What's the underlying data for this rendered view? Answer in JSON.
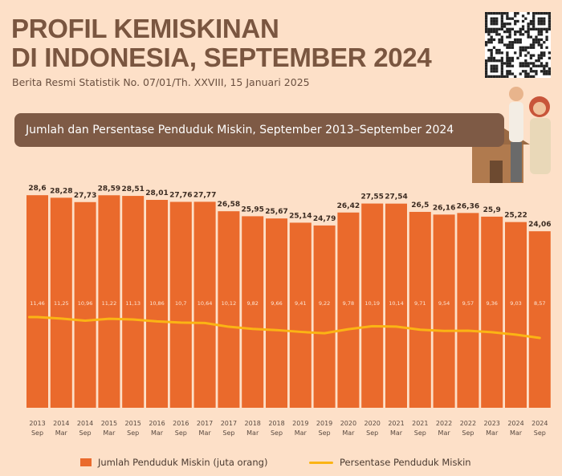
{
  "header": {
    "title_line1": "PROFIL KEMISKINAN",
    "title_line2": "DI INDONESIA, SEPTEMBER 2024",
    "subtitle": "Berita Resmi Statistik No. 07/01/Th. XXVIII, 15 Januari 2025",
    "banner": "Jumlah dan Persentase Penduduk Miskin, September 2013–September 2024"
  },
  "colors": {
    "bar": "#ea6a2c",
    "line": "#fbb414",
    "title": "#7a5640",
    "banner": "#7e5a45",
    "background": "#fde0c8"
  },
  "chart_data": {
    "type": "bar+line",
    "categories": [
      {
        "year": "2013",
        "period": "Sep"
      },
      {
        "year": "2014",
        "period": "Mar"
      },
      {
        "year": "2014",
        "period": "Sep"
      },
      {
        "year": "2015",
        "period": "Mar"
      },
      {
        "year": "2015",
        "period": "Sep"
      },
      {
        "year": "2016",
        "period": "Mar"
      },
      {
        "year": "2016",
        "period": "Sep"
      },
      {
        "year": "2017",
        "period": "Mar"
      },
      {
        "year": "2017",
        "period": "Sep"
      },
      {
        "year": "2018",
        "period": "Mar"
      },
      {
        "year": "2018",
        "period": "Sep"
      },
      {
        "year": "2019",
        "period": "Mar"
      },
      {
        "year": "2019",
        "period": "Sep"
      },
      {
        "year": "2020",
        "period": "Mar"
      },
      {
        "year": "2020",
        "period": "Sep"
      },
      {
        "year": "2021",
        "period": "Mar"
      },
      {
        "year": "2021",
        "period": "Sep"
      },
      {
        "year": "2022",
        "period": "Mar"
      },
      {
        "year": "2022",
        "period": "Sep"
      },
      {
        "year": "2023",
        "period": "Mar"
      },
      {
        "year": "2024",
        "period": "Mar"
      },
      {
        "year": "2024",
        "period": "Sep"
      }
    ],
    "series": [
      {
        "name": "Jumlah Penduduk Miskin (juta orang)",
        "kind": "bar",
        "values": [
          28.6,
          28.28,
          27.73,
          28.59,
          28.51,
          28.01,
          27.76,
          27.77,
          26.58,
          25.95,
          25.67,
          25.14,
          24.79,
          26.42,
          27.55,
          27.54,
          26.5,
          26.16,
          26.36,
          25.9,
          25.22,
          24.06
        ]
      },
      {
        "name": "Persentase Penduduk Miskin",
        "kind": "line",
        "values": [
          11.46,
          11.25,
          10.96,
          11.22,
          11.13,
          10.86,
          10.7,
          10.64,
          10.12,
          9.82,
          9.66,
          9.41,
          9.22,
          9.78,
          10.19,
          10.14,
          9.71,
          9.54,
          9.57,
          9.36,
          9.03,
          8.57
        ]
      }
    ],
    "legend_position": "bottom",
    "grid": false
  }
}
